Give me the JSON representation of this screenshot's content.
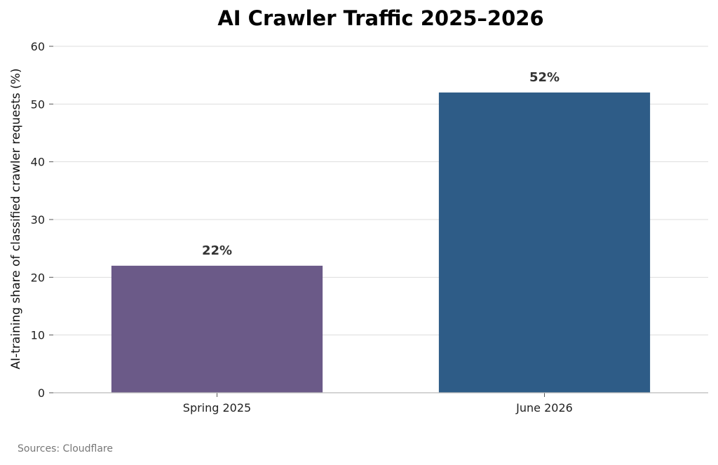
{
  "chart_data": {
    "type": "bar",
    "title": "AI Crawler Traffic 2025–2026",
    "xlabel": "",
    "ylabel": "AI-training share of classified crawler requests (%)",
    "categories": [
      "Spring 2025",
      "June 2026"
    ],
    "values": [
      22,
      52
    ],
    "data_labels": [
      "22%",
      "52%"
    ],
    "colors": [
      "#6b5a88",
      "#2e5c87"
    ],
    "ylim": [
      0,
      60
    ],
    "yticks": [
      0,
      10,
      20,
      30,
      40,
      50,
      60
    ],
    "grid": "horizontal",
    "legend": "none"
  },
  "source_note": "Sources: Cloudflare"
}
